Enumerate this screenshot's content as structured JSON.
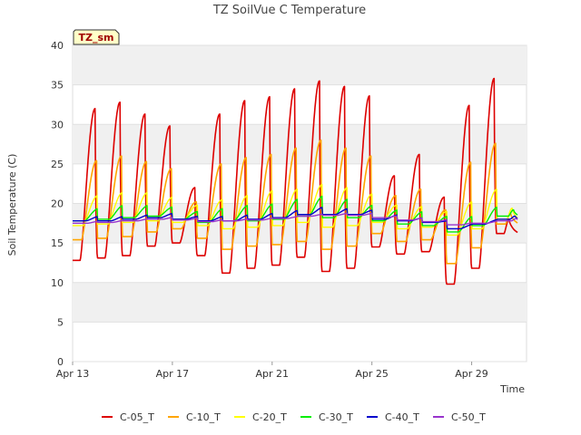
{
  "chart_data": {
    "type": "line",
    "title": "TZ SoilVue C Temperature",
    "xlabel": "Time",
    "ylabel": "Soil Temperature (C)",
    "badge": "TZ_sm",
    "ylim": [
      0,
      40
    ],
    "yticks": [
      "0",
      "5",
      "10",
      "15",
      "20",
      "25",
      "30",
      "35",
      "40"
    ],
    "xlim_days": [
      0,
      18.2
    ],
    "xticks": [
      {
        "label": "Apr 13",
        "day": 0
      },
      {
        "label": "Apr 17",
        "day": 4
      },
      {
        "label": "Apr 21",
        "day": 8
      },
      {
        "label": "Apr 25",
        "day": 12
      },
      {
        "label": "Apr 29",
        "day": 16
      }
    ],
    "grid": true,
    "legend_position": "bottom",
    "daily_peak_day_offsets": [
      0.9,
      1.9,
      2.9,
      3.9,
      4.9,
      5.9,
      6.9,
      7.9,
      8.9,
      9.9,
      10.9,
      11.9,
      12.9,
      13.9,
      14.9,
      15.9,
      16.9,
      17.5
    ],
    "series": [
      {
        "name": "C-05_T",
        "color": "#dd0000",
        "daily_max": [
          32,
          32.8,
          31.3,
          29.8,
          22,
          31.3,
          33,
          33.5,
          34.5,
          35.5,
          34.8,
          33.6,
          23.5,
          26.2,
          20.8,
          32.4,
          35.8,
          18
        ],
        "daily_min": [
          12.8,
          13.1,
          13.4,
          14.6,
          15.0,
          13.4,
          11.2,
          11.8,
          12.2,
          13.2,
          11.4,
          11.8,
          14.5,
          13.6,
          13.9,
          9.8,
          11.8,
          16.2
        ]
      },
      {
        "name": "C-10_T",
        "color": "#ffa500",
        "daily_max": [
          25.4,
          26.0,
          25.3,
          24.4,
          20.2,
          25.0,
          25.8,
          26.2,
          27.0,
          28.0,
          27.0,
          26.0,
          21.0,
          21.8,
          19.2,
          25.2,
          27.6,
          18.8
        ],
        "daily_min": [
          15.4,
          15.6,
          15.8,
          16.4,
          16.8,
          15.6,
          14.2,
          14.6,
          14.8,
          15.2,
          14.2,
          14.6,
          16.2,
          15.2,
          15.4,
          12.4,
          14.4,
          17.4
        ]
      },
      {
        "name": "C-20_T",
        "color": "#ffff00",
        "daily_max": [
          21.0,
          21.4,
          21.4,
          20.8,
          19.8,
          20.5,
          21.0,
          21.6,
          21.8,
          22.4,
          22.0,
          21.2,
          19.8,
          19.6,
          19.0,
          20.2,
          21.8,
          19.4
        ],
        "daily_min": [
          17.2,
          17.4,
          17.6,
          17.8,
          17.6,
          17.2,
          16.8,
          17.0,
          17.2,
          17.6,
          17.0,
          17.2,
          17.6,
          16.8,
          17.0,
          16.0,
          16.8,
          18.0
        ]
      },
      {
        "name": "C-30_T",
        "color": "#00ee00",
        "daily_max": [
          19.4,
          19.8,
          19.8,
          19.6,
          19.0,
          19.4,
          19.8,
          20.0,
          20.6,
          21.0,
          20.6,
          19.8,
          19.2,
          19.0,
          18.4,
          18.4,
          19.6,
          19.2
        ],
        "daily_min": [
          17.8,
          18.0,
          18.2,
          18.4,
          18.0,
          17.6,
          17.8,
          17.8,
          18.0,
          18.4,
          18.2,
          18.2,
          17.8,
          17.4,
          17.2,
          16.4,
          17.2,
          18.4
        ]
      },
      {
        "name": "C-40_T",
        "color": "#0000cc",
        "daily_max": [
          18.4,
          18.4,
          18.6,
          18.8,
          18.4,
          18.4,
          18.6,
          18.8,
          19.2,
          19.6,
          19.4,
          19.2,
          18.6,
          18.2,
          17.8,
          17.4,
          18.0,
          18.4
        ],
        "daily_min": [
          17.8,
          17.8,
          18.0,
          18.2,
          18.0,
          17.8,
          17.8,
          18.0,
          18.2,
          18.6,
          18.6,
          18.6,
          18.0,
          17.8,
          17.6,
          16.8,
          17.4,
          18.0
        ]
      },
      {
        "name": "C-50_T",
        "color": "#9933cc",
        "daily_max": [
          17.8,
          17.9,
          18.1,
          18.3,
          18.2,
          18.0,
          18.1,
          18.2,
          18.4,
          18.7,
          18.8,
          18.8,
          18.5,
          18.2,
          18.0,
          17.6,
          17.8,
          18.1
        ],
        "daily_min": [
          17.5,
          17.6,
          17.8,
          18.0,
          17.9,
          17.7,
          17.8,
          17.9,
          18.1,
          18.4,
          18.5,
          18.5,
          18.2,
          17.9,
          17.7,
          17.3,
          17.5,
          17.8
        ]
      }
    ]
  }
}
